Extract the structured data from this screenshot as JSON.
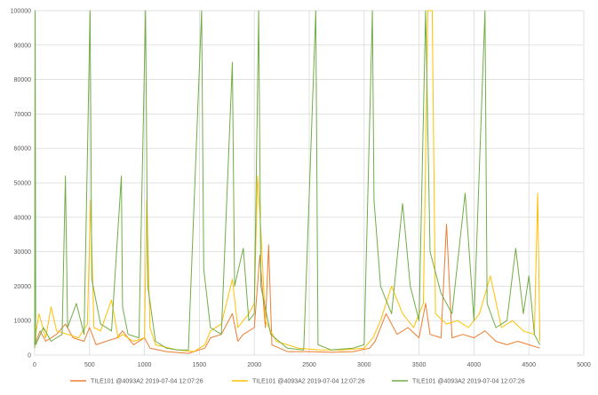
{
  "chart_data": {
    "type": "line",
    "title": "",
    "xlabel": "",
    "ylabel": "",
    "xlim": [
      0,
      5000
    ],
    "ylim": [
      0,
      100000
    ],
    "x_ticks": [
      0,
      500,
      1000,
      1500,
      2000,
      2500,
      3000,
      3500,
      4000,
      4500,
      5000
    ],
    "y_ticks": [
      0,
      10000,
      20000,
      30000,
      40000,
      50000,
      60000,
      70000,
      80000,
      90000,
      100000
    ],
    "grid": "vertical and horizontal",
    "legend_position": "bottom",
    "series": [
      {
        "name": "TILE101 @4093A2  2019-07-04 12:07:26",
        "color": "#ED7D31",
        "points": [
          [
            0,
            3000
          ],
          [
            50,
            7000
          ],
          [
            100,
            4000
          ],
          [
            200,
            6000
          ],
          [
            280,
            9000
          ],
          [
            350,
            5000
          ],
          [
            450,
            4000
          ],
          [
            500,
            8000
          ],
          [
            560,
            3000
          ],
          [
            650,
            4000
          ],
          [
            750,
            5000
          ],
          [
            800,
            7000
          ],
          [
            900,
            3000
          ],
          [
            1000,
            5000
          ],
          [
            1050,
            2000
          ],
          [
            1200,
            1000
          ],
          [
            1400,
            500
          ],
          [
            1550,
            2000
          ],
          [
            1600,
            5000
          ],
          [
            1700,
            6000
          ],
          [
            1800,
            12000
          ],
          [
            1850,
            4000
          ],
          [
            1900,
            6000
          ],
          [
            2000,
            8000
          ],
          [
            2050,
            29000
          ],
          [
            2100,
            8000
          ],
          [
            2130,
            32000
          ],
          [
            2160,
            3000
          ],
          [
            2300,
            1000
          ],
          [
            2500,
            1000
          ],
          [
            2700,
            800
          ],
          [
            2900,
            1000
          ],
          [
            3050,
            2000
          ],
          [
            3100,
            4000
          ],
          [
            3200,
            12000
          ],
          [
            3300,
            6000
          ],
          [
            3400,
            8000
          ],
          [
            3500,
            5000
          ],
          [
            3560,
            15000
          ],
          [
            3600,
            6000
          ],
          [
            3700,
            5000
          ],
          [
            3750,
            38000
          ],
          [
            3800,
            5000
          ],
          [
            3900,
            6000
          ],
          [
            4000,
            5000
          ],
          [
            4100,
            7000
          ],
          [
            4200,
            4000
          ],
          [
            4300,
            3000
          ],
          [
            4400,
            4000
          ],
          [
            4500,
            3000
          ],
          [
            4600,
            2000
          ]
        ]
      },
      {
        "name": "TILE101 @4093A2  2019-07-04 12:07:26",
        "color": "#FFC000",
        "points": [
          [
            0,
            4000
          ],
          [
            40,
            12000
          ],
          [
            100,
            5000
          ],
          [
            150,
            14000
          ],
          [
            200,
            7000
          ],
          [
            300,
            6000
          ],
          [
            400,
            5000
          ],
          [
            480,
            9000
          ],
          [
            510,
            45000
          ],
          [
            540,
            8000
          ],
          [
            600,
            7000
          ],
          [
            700,
            16000
          ],
          [
            760,
            5000
          ],
          [
            800,
            6000
          ],
          [
            900,
            4000
          ],
          [
            1000,
            5000
          ],
          [
            1020,
            45000
          ],
          [
            1050,
            8000
          ],
          [
            1100,
            3000
          ],
          [
            1300,
            1500
          ],
          [
            1450,
            1000
          ],
          [
            1550,
            3000
          ],
          [
            1600,
            7000
          ],
          [
            1700,
            9000
          ],
          [
            1800,
            22000
          ],
          [
            1850,
            8000
          ],
          [
            1900,
            10000
          ],
          [
            1950,
            12000
          ],
          [
            2000,
            15000
          ],
          [
            2030,
            52000
          ],
          [
            2060,
            36000
          ],
          [
            2100,
            10000
          ],
          [
            2200,
            4000
          ],
          [
            2400,
            2000
          ],
          [
            2600,
            1500
          ],
          [
            2800,
            1500
          ],
          [
            3000,
            2000
          ],
          [
            3080,
            5000
          ],
          [
            3150,
            10000
          ],
          [
            3250,
            20000
          ],
          [
            3350,
            12000
          ],
          [
            3450,
            8000
          ],
          [
            3540,
            15000
          ],
          [
            3580,
            100000
          ],
          [
            3620,
            100000
          ],
          [
            3650,
            12000
          ],
          [
            3750,
            9000
          ],
          [
            3850,
            10000
          ],
          [
            3950,
            8000
          ],
          [
            4050,
            12000
          ],
          [
            4150,
            23000
          ],
          [
            4250,
            8000
          ],
          [
            4350,
            10000
          ],
          [
            4450,
            7000
          ],
          [
            4550,
            6000
          ],
          [
            4580,
            47000
          ],
          [
            4600,
            4000
          ]
        ]
      },
      {
        "name": "TILE101 @4093A2  2019-07-04 12:07:26",
        "color": "#70AD47",
        "points": [
          [
            0,
            2000
          ],
          [
            5,
            100000
          ],
          [
            10,
            3000
          ],
          [
            80,
            8000
          ],
          [
            150,
            4000
          ],
          [
            250,
            6000
          ],
          [
            280,
            52000
          ],
          [
            300,
            8000
          ],
          [
            380,
            15000
          ],
          [
            450,
            6000
          ],
          [
            505,
            100000
          ],
          [
            520,
            22000
          ],
          [
            600,
            9000
          ],
          [
            700,
            7000
          ],
          [
            790,
            52000
          ],
          [
            800,
            14000
          ],
          [
            850,
            6000
          ],
          [
            950,
            5000
          ],
          [
            1010,
            100000
          ],
          [
            1030,
            20000
          ],
          [
            1100,
            4000
          ],
          [
            1200,
            2000
          ],
          [
            1300,
            1500
          ],
          [
            1400,
            1500
          ],
          [
            1520,
            100000
          ],
          [
            1540,
            25000
          ],
          [
            1600,
            8000
          ],
          [
            1700,
            6000
          ],
          [
            1800,
            85000
          ],
          [
            1820,
            20000
          ],
          [
            1900,
            31000
          ],
          [
            1950,
            10000
          ],
          [
            2000,
            12000
          ],
          [
            2040,
            100000
          ],
          [
            2060,
            20000
          ],
          [
            2150,
            6000
          ],
          [
            2300,
            2000
          ],
          [
            2450,
            1500
          ],
          [
            2560,
            100000
          ],
          [
            2580,
            3000
          ],
          [
            2700,
            1500
          ],
          [
            2900,
            2000
          ],
          [
            3000,
            3000
          ],
          [
            3075,
            100000
          ],
          [
            3090,
            45000
          ],
          [
            3150,
            20000
          ],
          [
            3250,
            12000
          ],
          [
            3350,
            44000
          ],
          [
            3420,
            20000
          ],
          [
            3500,
            10000
          ],
          [
            3560,
            100000
          ],
          [
            3600,
            30000
          ],
          [
            3700,
            18000
          ],
          [
            3800,
            12000
          ],
          [
            3920,
            47000
          ],
          [
            4000,
            10000
          ],
          [
            4100,
            100000
          ],
          [
            4120,
            15000
          ],
          [
            4200,
            8000
          ],
          [
            4300,
            10000
          ],
          [
            4380,
            31000
          ],
          [
            4450,
            12000
          ],
          [
            4500,
            23000
          ],
          [
            4550,
            6000
          ],
          [
            4600,
            3000
          ]
        ]
      }
    ]
  }
}
